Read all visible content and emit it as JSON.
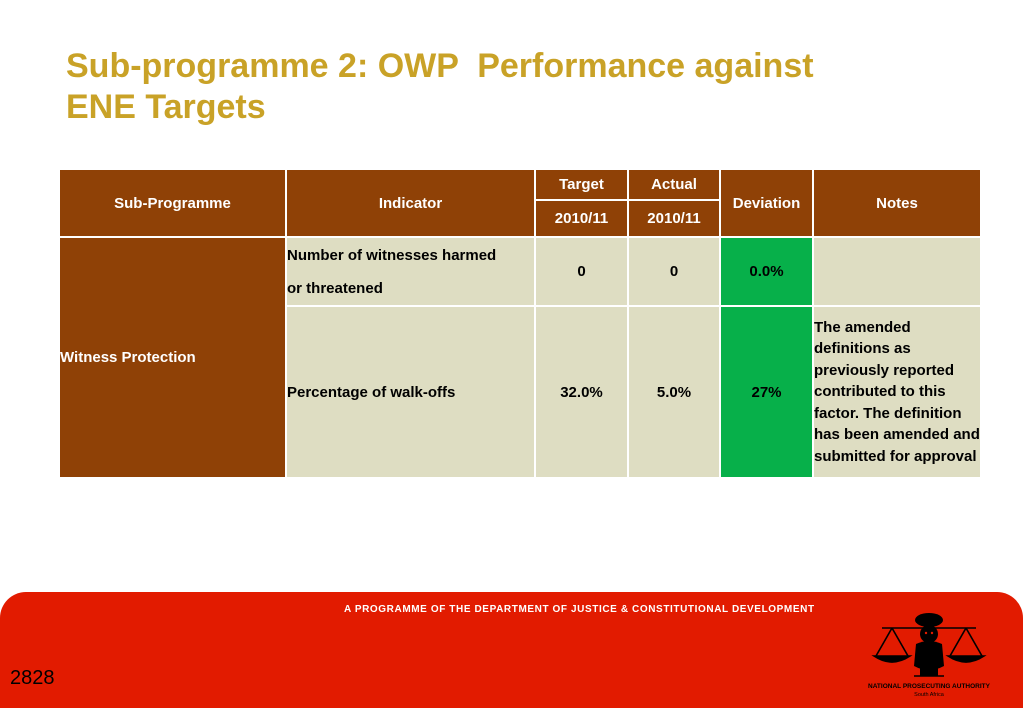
{
  "slide": {
    "title_line1": "Sub-programme 2: OWP  Performance against",
    "title_line2": "ENE Targets"
  },
  "table": {
    "headers": {
      "sub_programme": "Sub-Programme",
      "indicator": "Indicator",
      "target": "Target",
      "actual": "Actual",
      "target_year": "2010/11",
      "actual_year": "2010/11",
      "deviation": "Deviation",
      "notes": "Notes"
    },
    "sub_programme": "Witness Protection",
    "rows": [
      {
        "indicator_line1": "Number of witnesses harmed",
        "indicator_line2": "or threatened",
        "target": "0",
        "actual": "0",
        "deviation": "0.0%",
        "notes": ""
      },
      {
        "indicator": "Percentage of walk-offs",
        "target": "32.0%",
        "actual": "5.0%",
        "deviation": "27%",
        "notes_lines": [
          "The amended",
          "definitions as",
          "previously reported",
          "contributed to this",
          "factor.  The definition",
          "has been amended and",
          "submitted for approval"
        ]
      }
    ]
  },
  "footer": {
    "tagline": "A PROGRAMME OF THE DEPARTMENT OF JUSTICE & CONSTITUTIONAL DEVELOPMENT",
    "page_number": "2828",
    "logo_name": "NATIONAL PROSECUTING AUTHORITY",
    "logo_sub": "South Africa"
  },
  "colors": {
    "title": "#c9a227",
    "header_bg": "#8f4106",
    "cell_bg": "#deddc2",
    "deviation_green": "#07b04a",
    "footer_red": "#e21b00"
  }
}
